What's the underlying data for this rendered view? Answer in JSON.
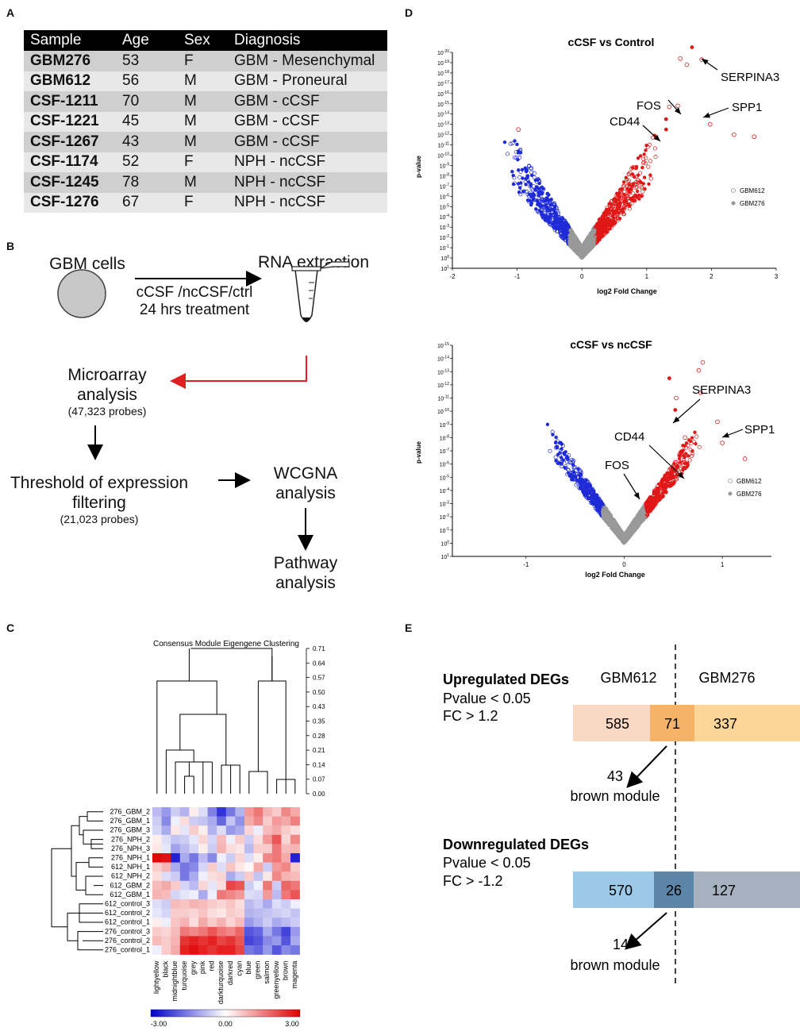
{
  "panels": {
    "a": "A",
    "b": "B",
    "c": "C",
    "d": "D",
    "e": "E"
  },
  "table": {
    "headers": [
      "Sample",
      "Age",
      "Sex",
      "Diagnosis"
    ],
    "rows": [
      [
        "GBM276",
        "53",
        "F",
        "GBM - Mesenchymal"
      ],
      [
        "GBM612",
        "56",
        "M",
        "GBM - Proneural"
      ],
      [
        "CSF-1211",
        "70",
        "M",
        "GBM - cCSF"
      ],
      [
        "CSF-1221",
        "45",
        "M",
        "GBM - cCSF"
      ],
      [
        "CSF-1267",
        "43",
        "M",
        "GBM - cCSF"
      ],
      [
        "CSF-1174",
        "52",
        "F",
        "NPH - ncCSF"
      ],
      [
        "CSF-1245",
        "78",
        "M",
        "NPH - ncCSF"
      ],
      [
        "CSF-1276",
        "67",
        "F",
        "NPH - ncCSF"
      ]
    ]
  },
  "workflow": {
    "gbm_cells": "GBM cells",
    "treatment_line1": "cCSF /ncCSF/ctrl",
    "treatment_line2": "24 hrs treatment",
    "rna": "RNA extraction",
    "microarray_line1": "Microarray",
    "microarray_line2": "analysis",
    "microarray_probes": "(47,323 probes)",
    "threshold_line1": "Threshold of expression",
    "threshold_line2": "filtering",
    "threshold_probes": "(21,023 probes)",
    "wgcna_line1": "WCGNA",
    "wgcna_line2": "analysis",
    "pathway_line1": "Pathway",
    "pathway_line2": "analysis"
  },
  "heatmap": {
    "title": "Consensus Module Eigengene Clustering",
    "height_ticks": [
      "0.71",
      "0.64",
      "0.57",
      "0.50",
      "0.43",
      "0.35",
      "0.28",
      "0.21",
      "0.14",
      "0.07",
      "0.00"
    ],
    "rows": [
      "276_GBM_2",
      "276_GBM_1",
      "276_GBM_3",
      "276_NPH_2",
      "276_NPH_3",
      "276_NPH_1",
      "612_NPH_1",
      "612_NPH_2",
      "612_GBM_2",
      "612_GBM_1",
      "612_control_3",
      "612_control_2",
      "612_control_1",
      "276_control_3",
      "276_control_2",
      "276_control_1"
    ],
    "modules": [
      "lightyellow",
      "black",
      "midnightblue",
      "turquoise",
      "grey",
      "pink",
      "red",
      "darkturquoise",
      "darkred",
      "cyan",
      "blue",
      "green",
      "salmon",
      "greenyellow",
      "brown",
      "magenta"
    ],
    "values": [
      [
        -0.8,
        -1.2,
        -0.6,
        -0.9,
        0.2,
        -0.4,
        -1.5,
        -2.4,
        -1.6,
        -0.9,
        1.2,
        1.6,
        0.9,
        0.6,
        1.4,
        1.0
      ],
      [
        -0.6,
        -1.4,
        -0.2,
        0.4,
        -0.6,
        -0.7,
        -1.0,
        -1.8,
        -0.7,
        -1.3,
        1.0,
        1.4,
        0.6,
        1.2,
        1.0,
        1.5
      ],
      [
        -0.5,
        -1.0,
        0.3,
        -0.3,
        0.6,
        0.2,
        -0.9,
        -0.4,
        -1.2,
        -1.0,
        0.5,
        -0.2,
        0.8,
        1.0,
        0.6,
        0.4
      ],
      [
        0.2,
        -0.4,
        -0.7,
        -0.6,
        -0.3,
        0.5,
        -0.5,
        0.8,
        -0.2,
        0.6,
        -0.6,
        0.4,
        1.2,
        2.0,
        0.5,
        1.4
      ],
      [
        0.3,
        -0.3,
        -1.1,
        -0.8,
        -0.5,
        0.2,
        -0.6,
        0.9,
        0.4,
        0.3,
        -0.8,
        0.6,
        0.6,
        1.6,
        0.8,
        0.9
      ],
      [
        2.9,
        2.8,
        -2.6,
        -1.0,
        -1.6,
        -0.8,
        -1.4,
        -0.2,
        -0.6,
        0.5,
        -0.4,
        0.2,
        1.4,
        1.6,
        1.0,
        -2.6
      ],
      [
        0.6,
        0.9,
        -1.0,
        -1.6,
        -1.4,
        -0.5,
        0.6,
        -0.4,
        0.7,
        0.3,
        0.1,
        1.0,
        -0.6,
        1.2,
        1.4,
        0.6
      ],
      [
        0.4,
        -0.4,
        -0.6,
        -1.6,
        -1.0,
        -0.2,
        0.4,
        0.5,
        -1.0,
        -0.6,
        0.6,
        -0.7,
        0.3,
        1.4,
        0.9,
        0.8
      ],
      [
        0.8,
        1.0,
        0.6,
        -0.5,
        -0.8,
        0.5,
        -0.3,
        0.4,
        2.2,
        2.0,
        -0.6,
        -0.2,
        1.6,
        -0.6,
        1.8,
        1.6
      ],
      [
        0.9,
        0.8,
        -0.5,
        -0.3,
        -0.2,
        -1.0,
        -0.2,
        1.6,
        1.4,
        1.2,
        -0.4,
        -0.5,
        1.2,
        -0.8,
        1.6,
        2.0
      ],
      [
        -0.4,
        -0.6,
        0.8,
        0.7,
        0.9,
        0.8,
        0.6,
        0.5,
        0.7,
        0.4,
        -0.8,
        -0.6,
        -1.0,
        -0.4,
        -0.6,
        -0.2
      ],
      [
        -0.3,
        -0.5,
        0.6,
        0.6,
        0.5,
        0.7,
        0.4,
        0.3,
        0.6,
        0.5,
        -0.9,
        -0.8,
        -0.7,
        -0.6,
        -0.5,
        -0.7
      ],
      [
        0.2,
        -0.2,
        0.7,
        0.9,
        0.4,
        1.0,
        0.6,
        0.9,
        0.5,
        0.8,
        -1.2,
        -0.9,
        -0.6,
        -1.0,
        -0.8,
        -0.6
      ],
      [
        0.6,
        0.5,
        0.8,
        1.6,
        1.4,
        1.6,
        2.0,
        1.6,
        1.4,
        1.8,
        -2.0,
        -1.8,
        -1.0,
        -1.6,
        -2.2,
        -1.2
      ],
      [
        0.8,
        0.6,
        0.9,
        2.4,
        2.6,
        2.4,
        2.6,
        2.2,
        2.4,
        2.0,
        -2.2,
        -2.0,
        -1.4,
        -1.2,
        -2.0,
        -1.0
      ],
      [
        -0.2,
        0.6,
        1.0,
        2.6,
        2.8,
        2.6,
        2.4,
        2.6,
        2.6,
        2.2,
        -1.6,
        -1.8,
        -1.2,
        -2.0,
        -1.4,
        -1.6
      ]
    ],
    "scale_min": "-3.00",
    "scale_mid": "0.00",
    "scale_max": "3.00"
  },
  "volcano": {
    "plot1": {
      "title": "cCSF vs Control",
      "xlabel": "log2 Fold Change",
      "ylabel": "p-value",
      "xticks": [
        "-2",
        "-1",
        "0",
        "1",
        "2",
        "3"
      ],
      "yticks": [
        "10-20",
        "10-19",
        "10-18",
        "10-17",
        "10-16",
        "10-15",
        "10-14",
        "10-13",
        "10-12",
        "10-11",
        "10-10",
        "10-9",
        "10-8",
        "10-7",
        "10-6",
        "10-5",
        "10-4",
        "10-3",
        "10-2",
        "10-1",
        "100",
        "101"
      ],
      "legend": [
        "GBM612",
        "GBM276"
      ],
      "annotations": [
        "SERPINA3",
        "FOS",
        "CD44",
        "SPP1"
      ]
    },
    "plot2": {
      "title": "cCSF vs ncCSF",
      "xlabel": "log2 Fold Change",
      "ylabel": "p-value",
      "xticks": [
        "-1",
        "0",
        "1"
      ],
      "yticks": [
        "10-15",
        "10-14",
        "10-13",
        "10-12",
        "10-11",
        "10-10",
        "10-9",
        "10-8",
        "10-7",
        "10-6",
        "10-5",
        "10-4",
        "10-3",
        "10-2",
        "10-1",
        "100",
        "101"
      ],
      "legend": [
        "GBM612",
        "GBM276"
      ],
      "annotations": [
        "SERPINA3",
        "SPP1",
        "CD44",
        "FOS"
      ]
    }
  },
  "degs": {
    "col_left": "GBM612",
    "col_right": "GBM276",
    "up_title": "Upregulated DEGs",
    "up_p": "Pvalue < 0.05",
    "up_fc": "FC > 1.2",
    "up_left": "585",
    "up_mid": "71",
    "up_right": "337",
    "up_count": "43",
    "up_module": "brown module",
    "down_title": "Downregulated DEGs",
    "down_p": "Pvalue < 0.05",
    "down_fc": "FC > -1.2",
    "down_left": "570",
    "down_mid": "26",
    "down_right": "127",
    "down_count": "14",
    "down_module": "brown module"
  }
}
